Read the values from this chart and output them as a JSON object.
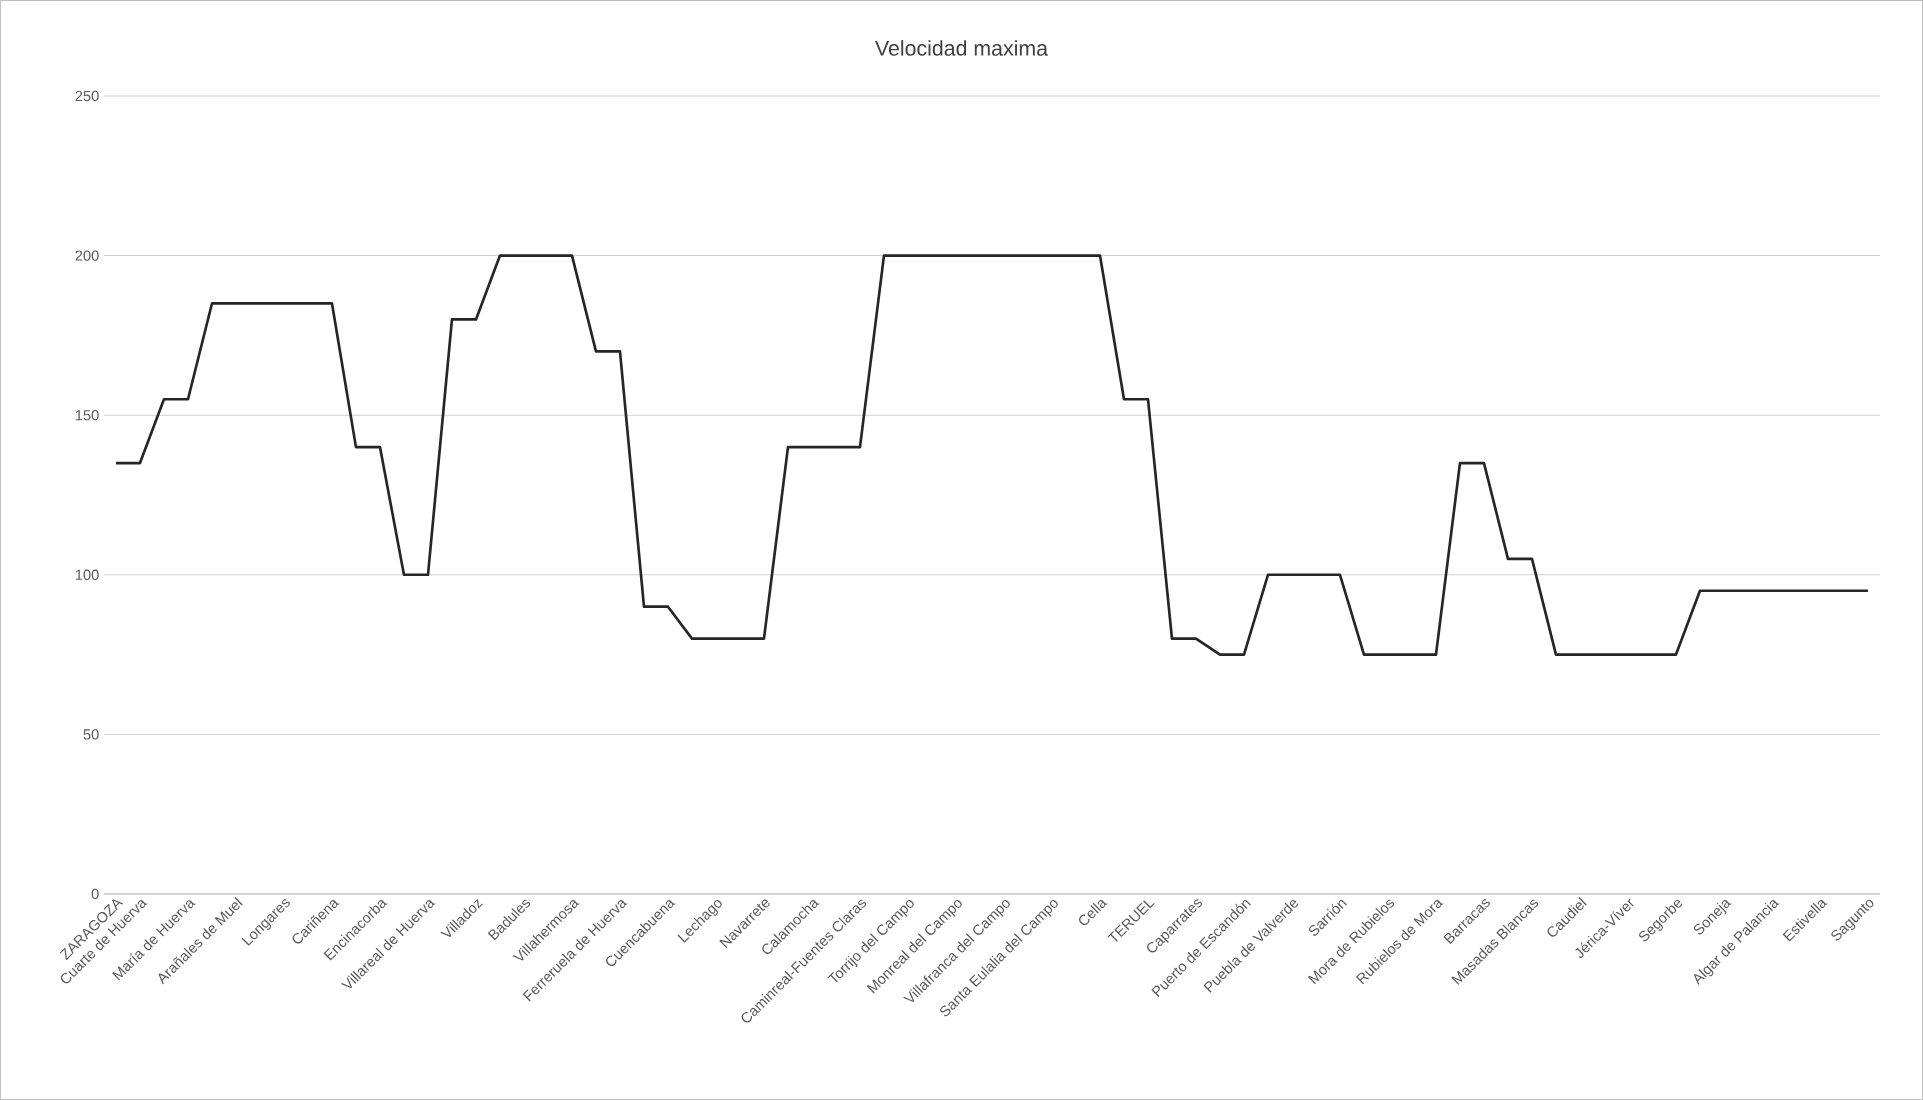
{
  "chart_data": {
    "type": "line",
    "title": "Velocidad maxima",
    "categories": [
      "ZARAGOZA",
      "Cuarte de Huerva",
      null,
      "María de Huerva",
      null,
      "Arañales de Muel",
      null,
      "Longares",
      null,
      "Cariñena",
      null,
      "Encinacorba",
      null,
      "Villareal de Huerva",
      null,
      "Villadoz",
      null,
      "Badules",
      null,
      "Villahermosa",
      null,
      "Ferreruela de Huerva",
      null,
      "Cuencabuena",
      null,
      "Lechago",
      null,
      "Navarrete",
      null,
      "Calamocha",
      null,
      "Caminreal-Fuentes Claras",
      null,
      "Torrijo del Campo",
      null,
      "Monreal del Campo",
      null,
      "Villafranca del Campo",
      null,
      "Santa Eulalia del Campo",
      null,
      "Cella",
      null,
      "TERUEL",
      null,
      "Caparrates",
      null,
      "Puerto de Escandón",
      null,
      "Puebla de Valverde",
      null,
      "Sarrión",
      null,
      "Mora de Rubielos",
      null,
      "Rubielos de Mora",
      null,
      "Barracas",
      null,
      "Masadas Blancas",
      null,
      "Caudiel",
      null,
      "Jérica-Víver",
      null,
      "Segorbe",
      null,
      "Soneja",
      null,
      "Algar de Palancia",
      null,
      "Estivella",
      null,
      "Sagunto"
    ],
    "series": [
      {
        "color": "#262626",
        "values": [
          135,
          135,
          155,
          155,
          185,
          185,
          185,
          185,
          185,
          185,
          140,
          140,
          100,
          100,
          180,
          180,
          200,
          200,
          200,
          200,
          170,
          170,
          90,
          90,
          80,
          80,
          80,
          80,
          140,
          140,
          140,
          140,
          200,
          200,
          200,
          200,
          200,
          200,
          200,
          200,
          200,
          200,
          155,
          155,
          80,
          80,
          75,
          75,
          100,
          100,
          100,
          100,
          75,
          75,
          75,
          75,
          135,
          135,
          105,
          105,
          75,
          75,
          75,
          75,
          75,
          75,
          95,
          95,
          95,
          95,
          95,
          95,
          95,
          95
        ]
      }
    ],
    "ylim": [
      0,
      250
    ],
    "yticks": [
      0,
      50,
      100,
      150,
      200,
      250
    ],
    "grid": "y"
  }
}
